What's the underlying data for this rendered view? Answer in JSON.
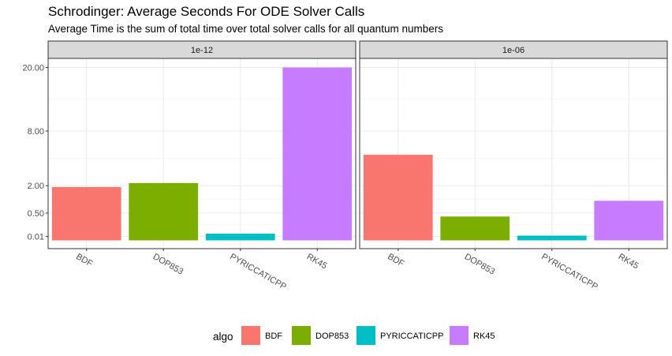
{
  "title": "Schrodinger: Average Seconds For ODE Solver Calls",
  "subtitle": "Average Time is the sum of total time over total solver calls for all quantum numbers",
  "chart_data": {
    "type": "bar",
    "y_scale": "sqrt",
    "ylim": [
      0,
      20.5
    ],
    "y_ticks": [
      "0.01",
      "0.50",
      "2.00",
      "8.00",
      "20.00"
    ],
    "y_tick_values": [
      0.01,
      0.5,
      2.0,
      8.0,
      20.0
    ],
    "categories": [
      "BDF",
      "DOP853",
      "PYRICCATICPP",
      "RK45"
    ],
    "colors": [
      "#F8766D",
      "#7CAE00",
      "#00BFC4",
      "#C77CFF"
    ],
    "legend": {
      "title": "algo",
      "position": "bottom",
      "entries": [
        "BDF",
        "DOP853",
        "PYRICCATICPP",
        "RK45"
      ]
    },
    "grid": true,
    "panels": [
      {
        "facet": "1e-12",
        "values": [
          1.9,
          2.2,
          0.03,
          20.0
        ]
      },
      {
        "facet": "1e-06",
        "values": [
          4.9,
          0.38,
          0.015,
          1.05
        ]
      }
    ]
  }
}
